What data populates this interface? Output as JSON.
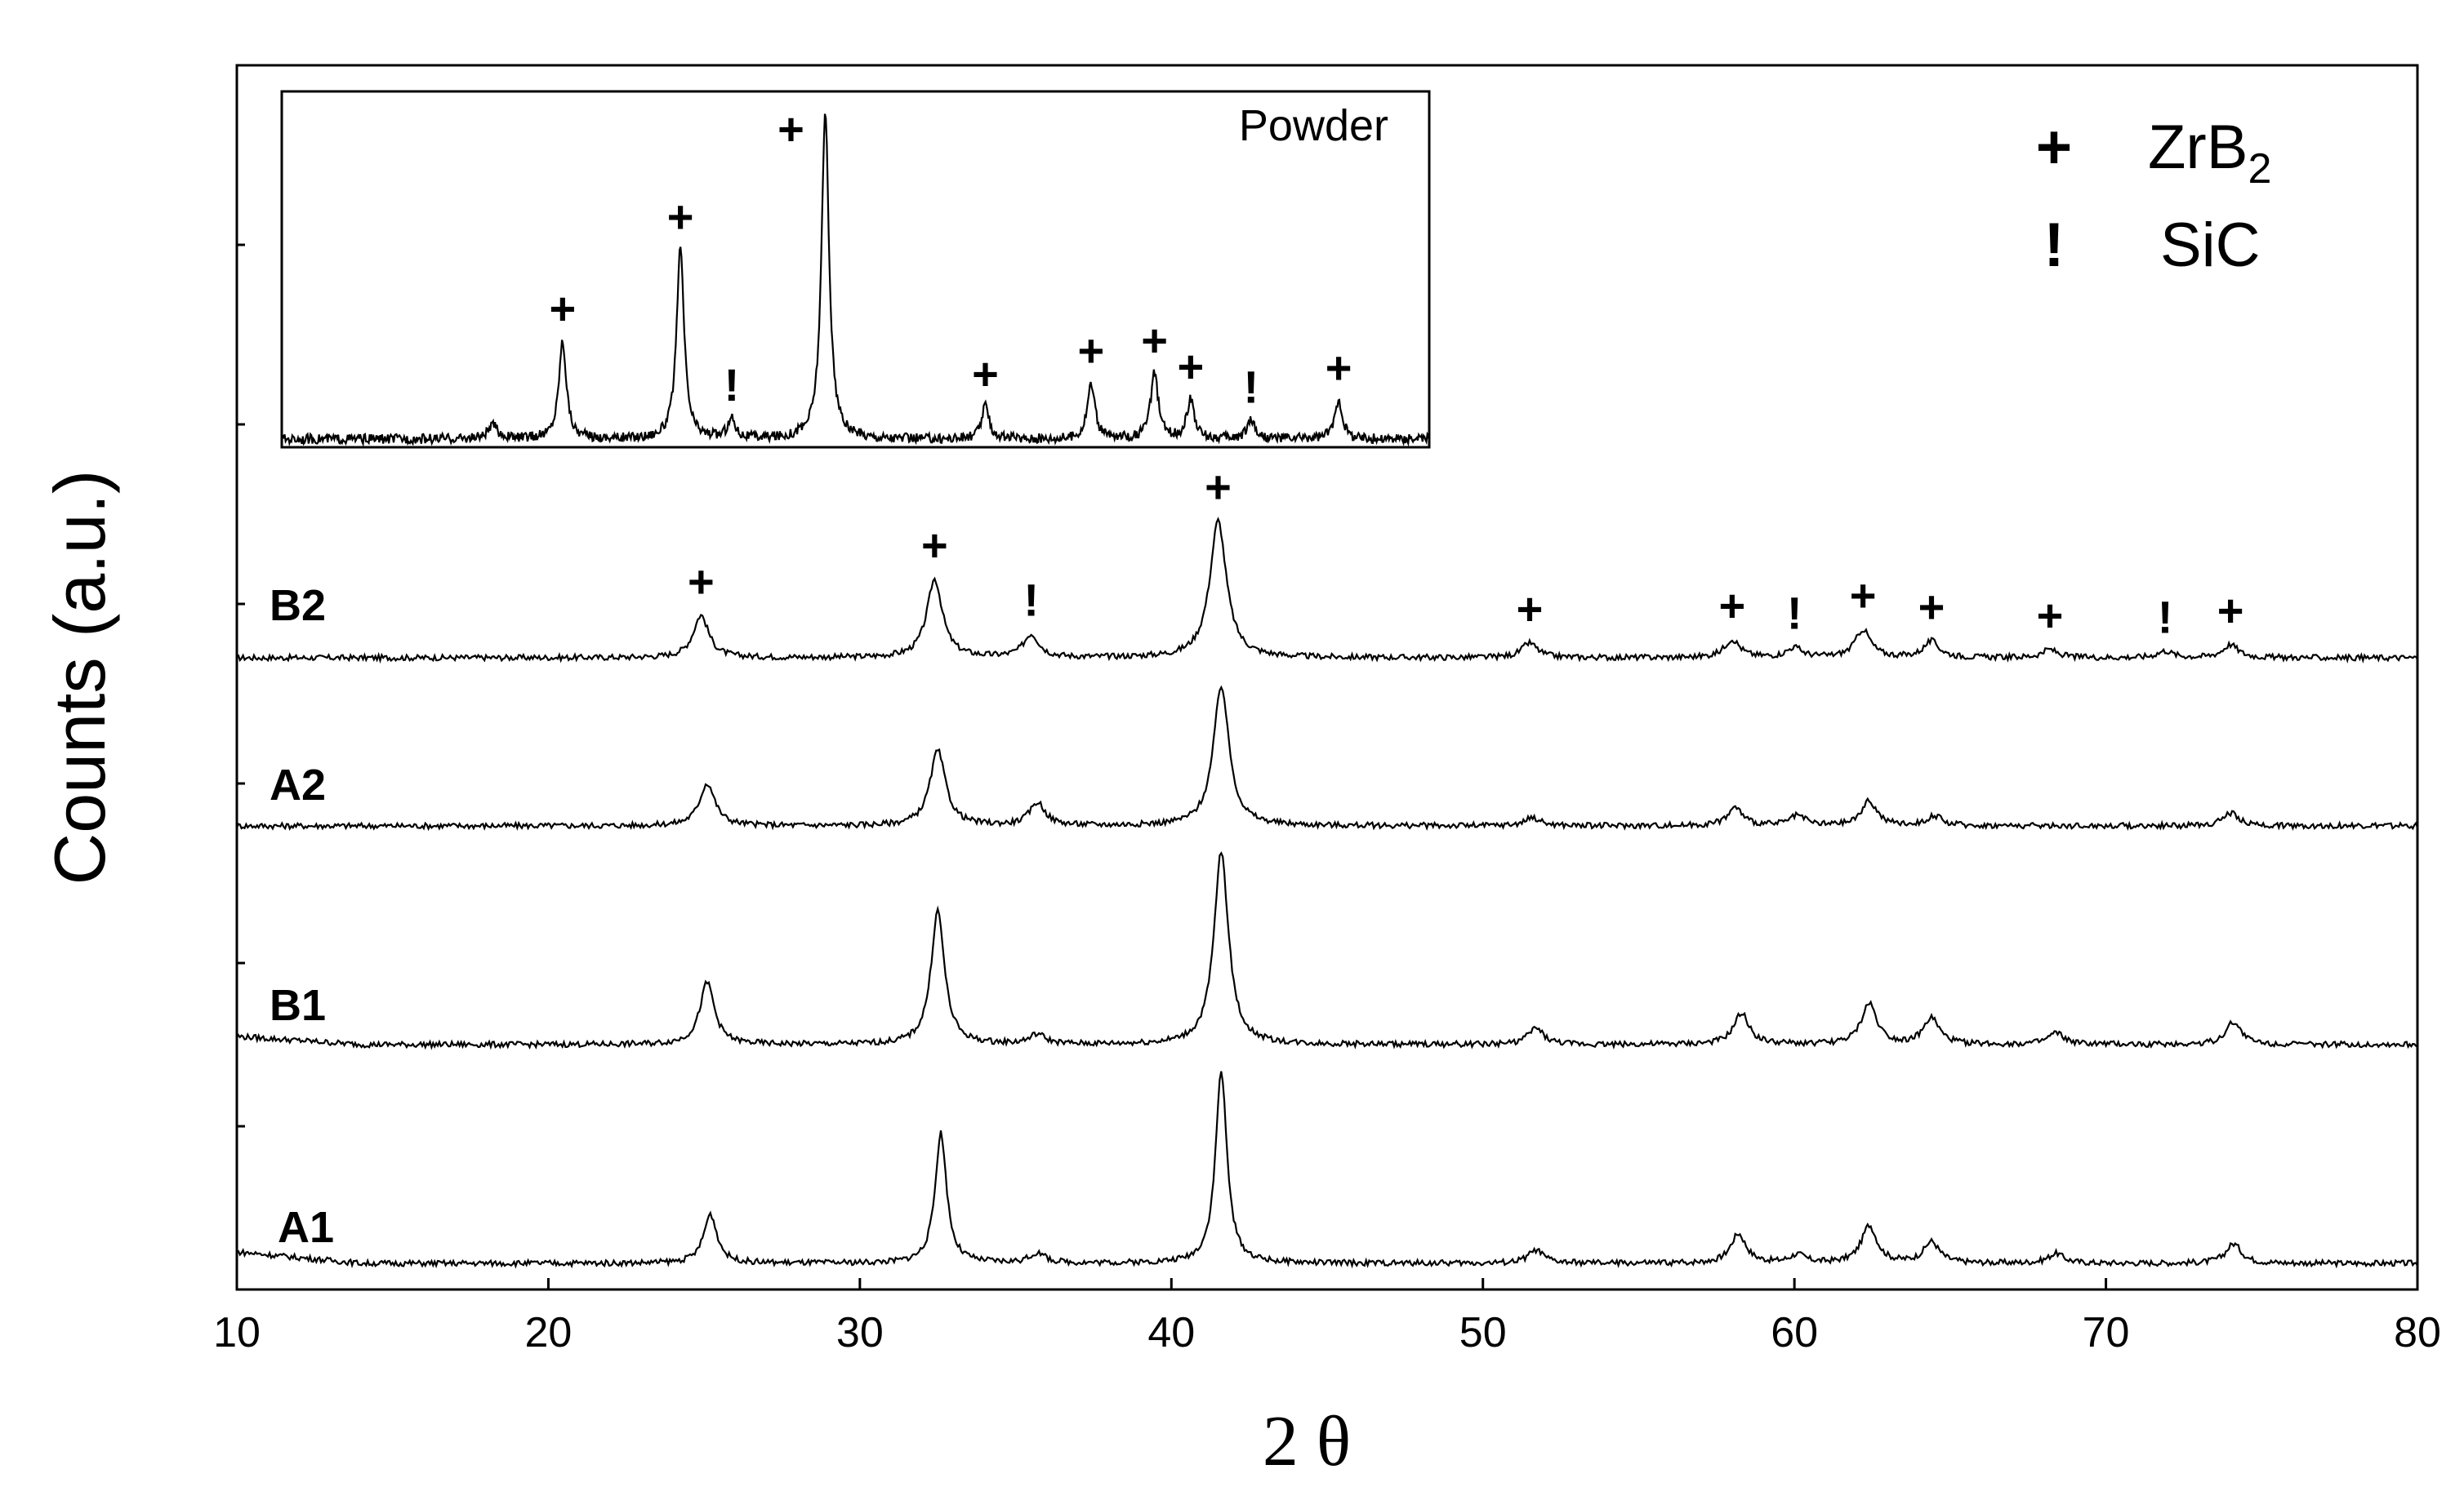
{
  "chart_data": {
    "type": "line",
    "xlabel": "2 θ",
    "ylabel": "Counts (a.u.)",
    "xlim": [
      10,
      80
    ],
    "xticks": [
      "10",
      "20",
      "30",
      "40",
      "50",
      "60",
      "70",
      "80"
    ],
    "y_tick_labels_shown": false,
    "legend_position": "top-right",
    "legend": [
      {
        "symbol": "+",
        "name": "ZrB",
        "subscript": "2"
      },
      {
        "symbol": "!",
        "name": "SiC"
      }
    ],
    "series": [
      {
        "name": "B2",
        "peaks": [
          {
            "x": 24.9,
            "h": 0.26,
            "w": 0.3,
            "phase": "+"
          },
          {
            "x": 32.4,
            "h": 0.48,
            "w": 0.3,
            "phase": "+"
          },
          {
            "x": 35.5,
            "h": 0.14,
            "w": 0.3,
            "phase": "!"
          },
          {
            "x": 41.5,
            "h": 0.84,
            "w": 0.32,
            "phase": "+"
          },
          {
            "x": 51.5,
            "h": 0.09,
            "w": 0.3,
            "phase": "+"
          },
          {
            "x": 58.0,
            "h": 0.11,
            "w": 0.3,
            "phase": "+"
          },
          {
            "x": 60.0,
            "h": 0.06,
            "w": 0.3,
            "phase": "!"
          },
          {
            "x": 62.2,
            "h": 0.17,
            "w": 0.3,
            "phase": "+"
          },
          {
            "x": 64.4,
            "h": 0.1,
            "w": 0.3,
            "phase": "+"
          },
          {
            "x": 68.2,
            "h": 0.05,
            "w": 0.3,
            "phase": "+"
          },
          {
            "x": 71.9,
            "h": 0.04,
            "w": 0.3,
            "phase": "!"
          },
          {
            "x": 74.0,
            "h": 0.08,
            "w": 0.3,
            "phase": "+"
          }
        ]
      },
      {
        "name": "A2",
        "peaks": [
          {
            "x": 25.1,
            "h": 0.26,
            "w": 0.3
          },
          {
            "x": 32.5,
            "h": 0.46,
            "w": 0.3
          },
          {
            "x": 35.7,
            "h": 0.14,
            "w": 0.3
          },
          {
            "x": 41.6,
            "h": 0.86,
            "w": 0.3
          },
          {
            "x": 51.6,
            "h": 0.05,
            "w": 0.3
          },
          {
            "x": 58.1,
            "h": 0.11,
            "w": 0.3
          },
          {
            "x": 60.1,
            "h": 0.06,
            "w": 0.3
          },
          {
            "x": 62.4,
            "h": 0.15,
            "w": 0.3
          },
          {
            "x": 64.5,
            "h": 0.06,
            "w": 0.3
          },
          {
            "x": 74.0,
            "h": 0.08,
            "w": 0.3
          }
        ]
      },
      {
        "name": "B1",
        "peaks": [
          {
            "x": 25.1,
            "h": 0.38,
            "w": 0.28
          },
          {
            "x": 32.5,
            "h": 0.82,
            "w": 0.26
          },
          {
            "x": 35.7,
            "h": 0.06,
            "w": 0.3
          },
          {
            "x": 41.6,
            "h": 1.18,
            "w": 0.28
          },
          {
            "x": 51.7,
            "h": 0.1,
            "w": 0.3
          },
          {
            "x": 58.3,
            "h": 0.19,
            "w": 0.3
          },
          {
            "x": 62.4,
            "h": 0.25,
            "w": 0.3
          },
          {
            "x": 64.4,
            "h": 0.16,
            "w": 0.3
          },
          {
            "x": 68.4,
            "h": 0.07,
            "w": 0.3
          },
          {
            "x": 74.1,
            "h": 0.14,
            "w": 0.3
          }
        ]
      },
      {
        "name": "A1",
        "peaks": [
          {
            "x": 25.2,
            "h": 0.3,
            "w": 0.26
          },
          {
            "x": 32.6,
            "h": 0.8,
            "w": 0.22
          },
          {
            "x": 35.7,
            "h": 0.06,
            "w": 0.3
          },
          {
            "x": 41.6,
            "h": 1.18,
            "w": 0.22
          },
          {
            "x": 51.7,
            "h": 0.08,
            "w": 0.3
          },
          {
            "x": 58.2,
            "h": 0.18,
            "w": 0.3
          },
          {
            "x": 60.1,
            "h": 0.05,
            "w": 0.3
          },
          {
            "x": 62.4,
            "h": 0.23,
            "w": 0.3
          },
          {
            "x": 64.4,
            "h": 0.13,
            "w": 0.3
          },
          {
            "x": 68.4,
            "h": 0.06,
            "w": 0.3
          },
          {
            "x": 74.1,
            "h": 0.12,
            "w": 0.3
          }
        ]
      }
    ],
    "inset": {
      "title": "Powder",
      "peaks": [
        {
          "x": 17.0,
          "h": 0.04,
          "w": 0.2
        },
        {
          "x": 19.3,
          "h": 0.3,
          "w": 0.15,
          "phase": "+"
        },
        {
          "x": 23.2,
          "h": 0.58,
          "w": 0.15,
          "phase": "+"
        },
        {
          "x": 24.9,
          "h": 0.06,
          "w": 0.15,
          "phase": "!"
        },
        {
          "x": 28.0,
          "h": 1.0,
          "w": 0.15,
          "phase": "+"
        },
        {
          "x": 33.3,
          "h": 0.1,
          "w": 0.15,
          "phase": "+"
        },
        {
          "x": 36.8,
          "h": 0.17,
          "w": 0.15,
          "phase": "+"
        },
        {
          "x": 38.9,
          "h": 0.2,
          "w": 0.15,
          "phase": "+"
        },
        {
          "x": 40.1,
          "h": 0.12,
          "w": 0.15,
          "phase": "+"
        },
        {
          "x": 42.1,
          "h": 0.06,
          "w": 0.15,
          "phase": "!"
        },
        {
          "x": 45.0,
          "h": 0.12,
          "w": 0.15,
          "phase": "+"
        }
      ]
    }
  }
}
